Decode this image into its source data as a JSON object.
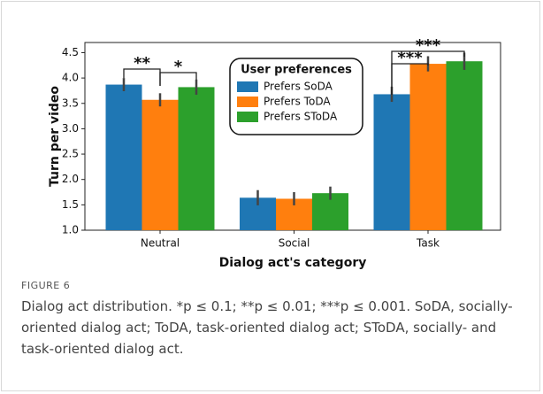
{
  "chart_data": {
    "type": "bar",
    "ylabel": "Turn per video",
    "xlabel": "Dialog act's category",
    "categories": [
      "Neutral",
      "Social",
      "Task"
    ],
    "series": [
      {
        "name": "Prefers SoDA",
        "color": "#1f77b4",
        "values": [
          3.87,
          1.64,
          3.68
        ],
        "errors": [
          0.13,
          0.15,
          0.15
        ]
      },
      {
        "name": "Prefers ToDA",
        "color": "#ff7f0e",
        "values": [
          3.57,
          1.62,
          4.28
        ],
        "errors": [
          0.13,
          0.13,
          0.15
        ]
      },
      {
        "name": "Prefers SToDA",
        "color": "#2ca02c",
        "values": [
          3.82,
          1.73,
          4.33
        ],
        "errors": [
          0.15,
          0.13,
          0.17
        ]
      }
    ],
    "ylim": [
      1.0,
      4.7
    ],
    "yticks": [
      {
        "value": 1.0,
        "label": "1.0"
      },
      {
        "value": 1.5,
        "label": "1.5"
      },
      {
        "value": 2.0,
        "label": "2.0"
      },
      {
        "value": 2.5,
        "label": "2.5"
      },
      {
        "value": 3.0,
        "label": "3.0"
      },
      {
        "value": 3.5,
        "label": "3.5"
      },
      {
        "value": 4.0,
        "label": "4.0"
      },
      {
        "value": 4.5,
        "label": "4.5"
      }
    ],
    "legend_title": "User preferences",
    "legend_position": "upper center",
    "annotations": [
      "**",
      "*",
      "***",
      "***"
    ]
  },
  "figure": {
    "label": "FIGURE 6",
    "caption": "Dialog act distribution. *p ≤ 0.1; **p ≤ 0.01; ***p ≤ 0.001. SoDA, socially-oriented dialog act; ToDA, task-oriented dialog act; SToDA, socially- and task-oriented dialog act."
  }
}
